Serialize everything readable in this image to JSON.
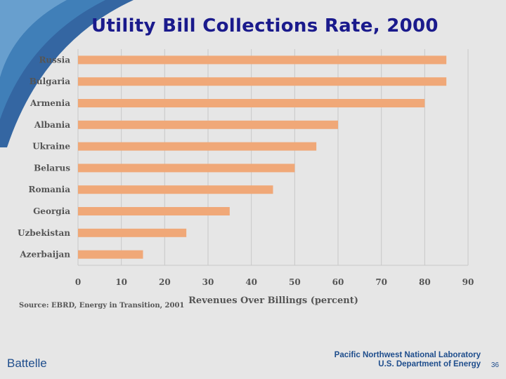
{
  "slide": {
    "title": "Utility Bill Collections Rate, 2000",
    "source": "Source: EBRD, Energy in Transition, 2001",
    "footer_left": "Battelle",
    "footer_right_line1": "Pacific Northwest National Laboratory",
    "footer_right_line2": "U.S. Department of Energy",
    "page_number": "36"
  },
  "colors": {
    "bar": "#f0a878",
    "grid": "#c8c8c8",
    "title": "#1a1a8c",
    "corner": "#2a5f9e"
  },
  "chart_data": {
    "type": "bar",
    "orientation": "horizontal",
    "title": "Utility Bill Collections Rate, 2000",
    "xlabel": "Revenues Over Billings (percent)",
    "ylabel": "",
    "xlim": [
      0,
      90
    ],
    "xticks": [
      0,
      10,
      20,
      30,
      40,
      50,
      60,
      70,
      80,
      90
    ],
    "grid": true,
    "categories": [
      "Russia",
      "Bulgaria",
      "Armenia",
      "Albania",
      "Ukraine",
      "Belarus",
      "Romania",
      "Georgia",
      "Uzbekistan",
      "Azerbaijan"
    ],
    "values": [
      85,
      85,
      80,
      60,
      55,
      50,
      45,
      35,
      25,
      15
    ]
  }
}
